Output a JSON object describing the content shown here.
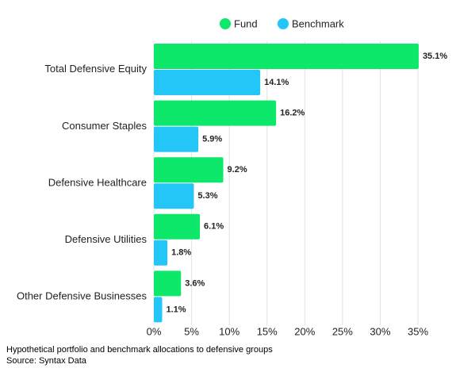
{
  "chart_data": {
    "type": "hbar",
    "categories": [
      "Total Defensive Equity",
      "Consumer Staples",
      "Defensive Healthcare",
      "Defensive Utilities",
      "Other Defensive Businesses"
    ],
    "series": [
      {
        "name": "Fund",
        "color": "#0de86b",
        "values": [
          35.1,
          16.2,
          9.2,
          6.1,
          3.6
        ],
        "value_labels": [
          "35.1%",
          "16.2%",
          "9.2%",
          "6.1%",
          "3.6%"
        ]
      },
      {
        "name": "Benchmark",
        "color": "#24c5f7",
        "values": [
          14.1,
          5.9,
          5.3,
          1.8,
          1.1
        ],
        "value_labels": [
          "14.1%",
          "5.9%",
          "5.3%",
          "1.8%",
          "1.1%"
        ]
      }
    ],
    "xlim": [
      0,
      35
    ],
    "xticks": [
      {
        "value": 0,
        "label": "0%"
      },
      {
        "value": 5,
        "label": "5%"
      },
      {
        "value": 10,
        "label": "10%"
      },
      {
        "value": 15,
        "label": "15%"
      },
      {
        "value": 20,
        "label": "20%"
      },
      {
        "value": 25,
        "label": "25%"
      },
      {
        "value": 30,
        "label": "30%"
      },
      {
        "value": 35,
        "label": "35%"
      }
    ],
    "grid": true,
    "legend": "top",
    "caption": "Hypothetical portfolio and benchmark allocations to defensive groups",
    "source": "Source: Syntax Data"
  }
}
